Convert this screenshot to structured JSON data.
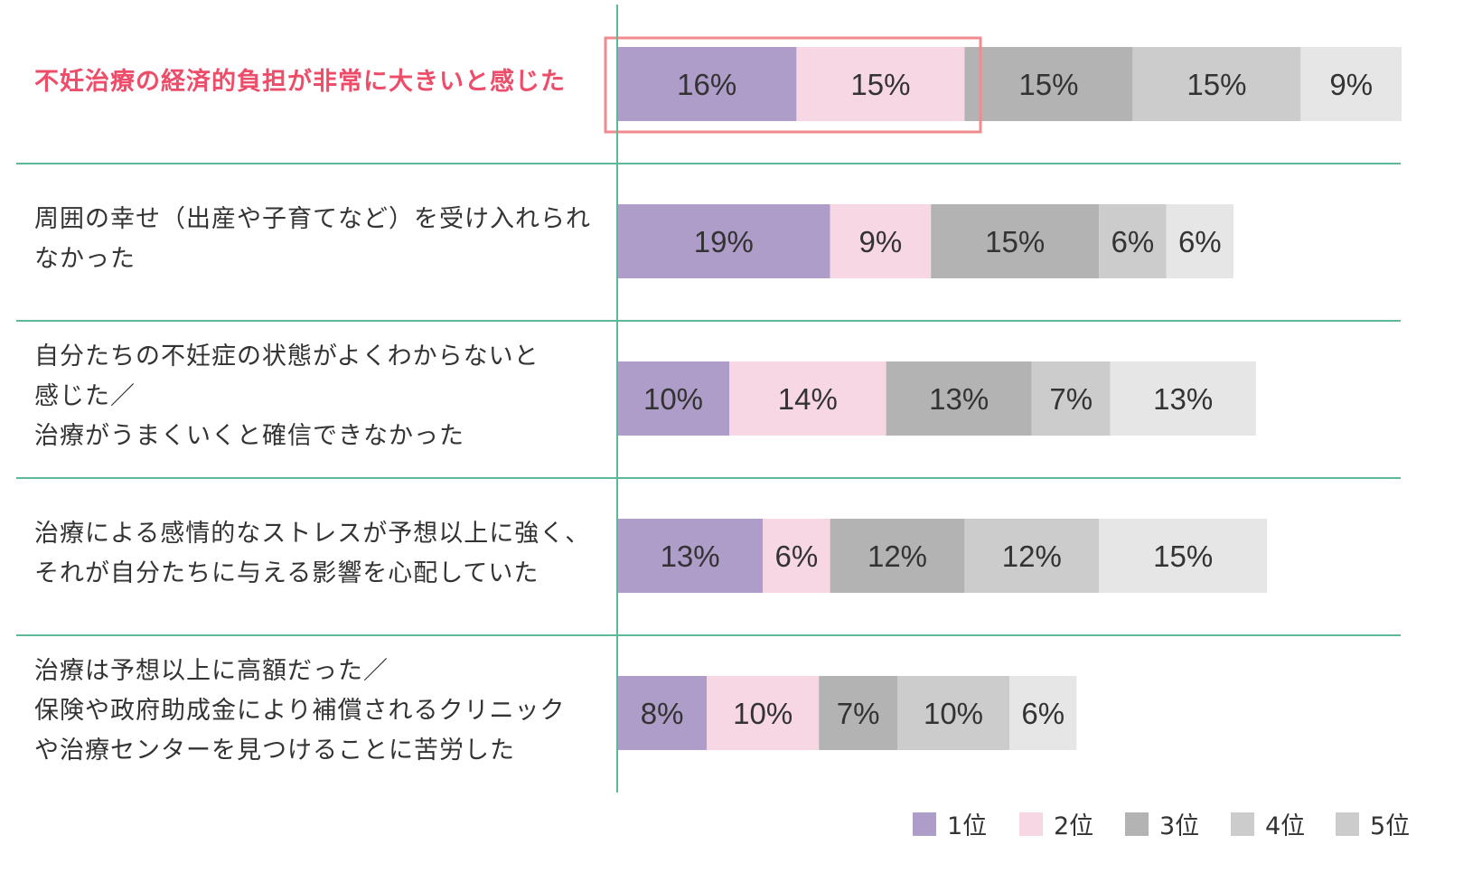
{
  "chart_data": {
    "type": "bar",
    "orientation": "horizontal",
    "stacked": true,
    "categories": [
      "不妊治療の経済的負担が非常に大きいと感じた",
      "周囲の幸せ（出産や子育てなど）を受け入れられなかった",
      "自分たちの不妊症の状態がよくわからないと感じた／治療がうまくいくと確信できなかった",
      "治療による感情的なストレスが予想以上に強く、それが自分たちに与える影響を心配していた",
      "治療は予想以上に高額だった／保険や政府助成金により補償されるクリニックや治療センターを見つけることに苦労した"
    ],
    "category_lines": [
      [
        "不妊治療の経済的負担が非常に大きいと感じた"
      ],
      [
        "周囲の幸せ（出産や子育てなど）を受け入れられ",
        "なかった"
      ],
      [
        "自分たちの不妊症の状態がよくわからないと",
        "感じた／",
        "治療がうまくいくと確信できなかった"
      ],
      [
        "治療による感情的なストレスが予想以上に強く、",
        "それが自分たちに与える影響を心配していた"
      ],
      [
        "治療は予想以上に高額だった／",
        "保険や政府助成金により補償されるクリニック",
        "や治療センターを見つけることに苦労した"
      ]
    ],
    "highlighted_category": 0,
    "series": [
      {
        "name": "1位",
        "color": "#ae9cc9",
        "values": [
          16,
          19,
          10,
          13,
          8
        ]
      },
      {
        "name": "2位",
        "color": "#f8d7e4",
        "values": [
          15,
          9,
          14,
          6,
          10
        ]
      },
      {
        "name": "3位",
        "color": "#b3b3b3",
        "values": [
          15,
          15,
          13,
          12,
          7
        ]
      },
      {
        "name": "4位",
        "color": "#cccccc",
        "values": [
          15,
          6,
          7,
          12,
          10
        ]
      },
      {
        "name": "5位",
        "color": "#e6e6e6",
        "values": [
          9,
          6,
          13,
          15,
          6
        ]
      }
    ],
    "legend_swatch_colors": [
      "#ae9cc9",
      "#f8d7e4",
      "#b3b3b3",
      "#cccccc",
      "#cccccc"
    ],
    "value_suffix": "%",
    "legend_position": "bottom-right",
    "colors": {
      "highlight": "#ee4d6a",
      "highlight_box": "#f28b8f",
      "axis": "#5cb896",
      "text": "#333333"
    }
  }
}
